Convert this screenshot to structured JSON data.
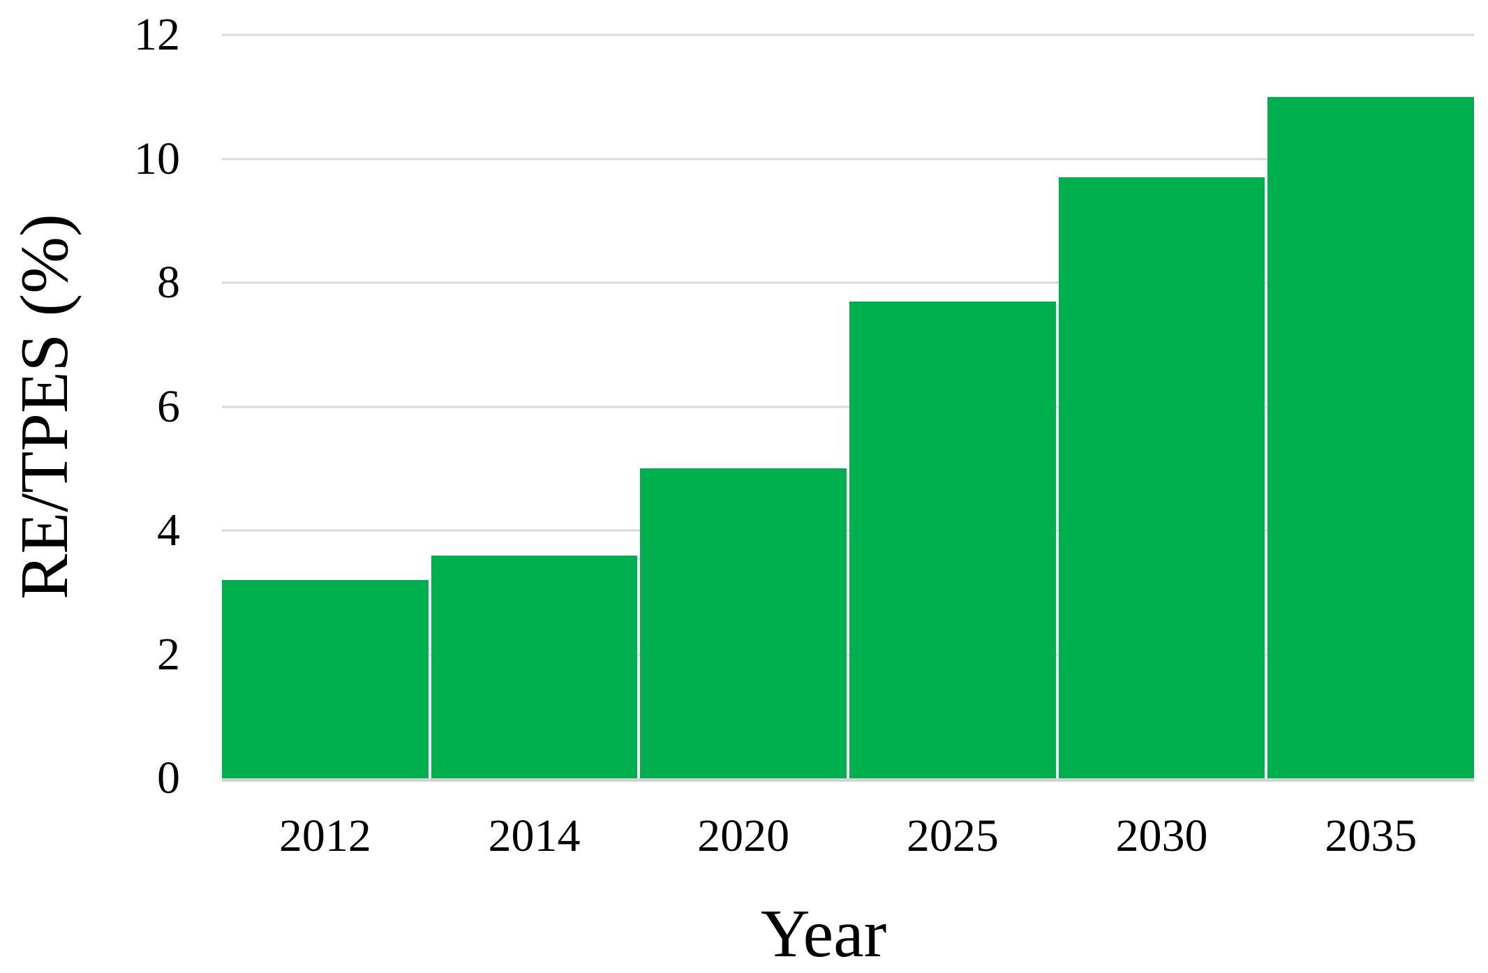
{
  "chart_data": {
    "type": "bar",
    "categories": [
      "2012",
      "2014",
      "2020",
      "2025",
      "2030",
      "2035"
    ],
    "values": [
      3.2,
      3.6,
      5.0,
      7.7,
      9.7,
      11.0
    ],
    "xlabel": "Year",
    "ylabel": "RE/TPES (%)",
    "ylim": [
      0,
      12
    ],
    "yticks": [
      0,
      2,
      4,
      6,
      8,
      10,
      12
    ],
    "gridline_values": [
      2,
      4,
      6,
      8,
      10,
      12
    ],
    "grid": "horizontal-major",
    "legend": "none",
    "bar_color": "#00B04F",
    "gridline_color": "#D9D9D9",
    "axis_line_color": "#D3D3D3",
    "text_color": "#000000",
    "background": "#FFFFFF"
  }
}
